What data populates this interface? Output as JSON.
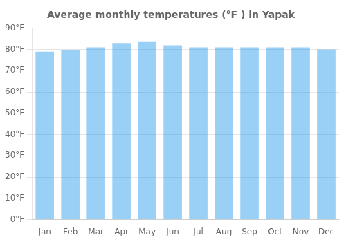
{
  "chart_data": {
    "type": "bar",
    "title": "Average monthly temperatures (°F ) in Yapak",
    "categories": [
      "Jan",
      "Feb",
      "Mar",
      "Apr",
      "May",
      "Jun",
      "Jul",
      "Aug",
      "Sep",
      "Oct",
      "Nov",
      "Dec"
    ],
    "values": [
      79,
      79.5,
      81,
      83,
      83.5,
      82,
      81,
      81,
      81,
      81,
      81,
      80
    ],
    "ylim": [
      0,
      90
    ],
    "yticks": [
      {
        "value": 0,
        "label": "0°F"
      },
      {
        "value": 10,
        "label": "10°F"
      },
      {
        "value": 20,
        "label": "20°F"
      },
      {
        "value": 30,
        "label": "30°F"
      },
      {
        "value": 40,
        "label": "40°F"
      },
      {
        "value": 50,
        "label": "50°F"
      },
      {
        "value": 60,
        "label": "60°F"
      },
      {
        "value": 70,
        "label": "70°F"
      },
      {
        "value": 80,
        "label": "80°F"
      },
      {
        "value": 90,
        "label": "90°F"
      }
    ],
    "grid": true
  }
}
